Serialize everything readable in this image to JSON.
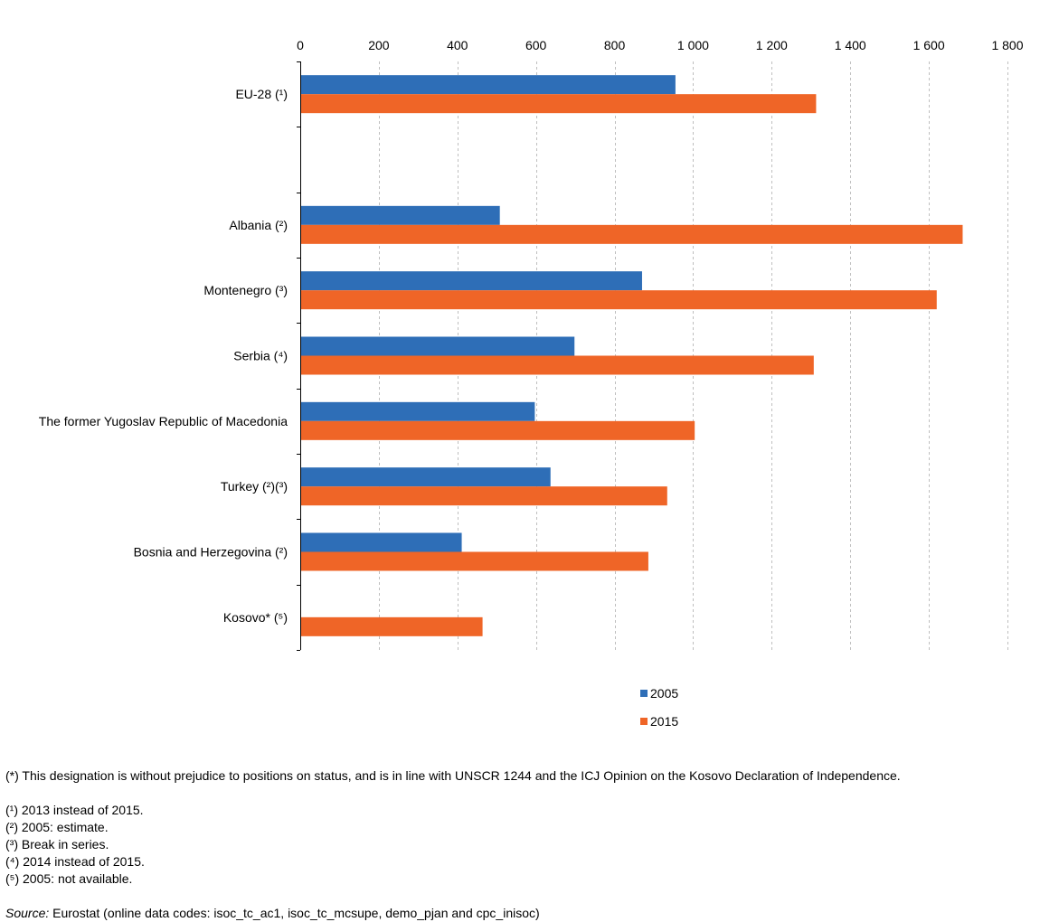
{
  "colors": {
    "series_2005": "#2e6eb7",
    "series_2015": "#ef6527",
    "grid": "#bfbfbf",
    "axis": "#000000"
  },
  "chart_data": {
    "type": "bar",
    "orientation": "horizontal",
    "categories": [
      "EU-28 (¹)",
      "",
      "Albania (²)",
      "Montenegro (³)",
      "Serbia (⁴)",
      "The former Yugoslav Republic of Macedonia",
      "Turkey (²)(³)",
      "Bosnia and Herzegovina (²)",
      "Kosovo* (⁵)"
    ],
    "series": [
      {
        "name": "2005",
        "values": [
          955,
          null,
          508,
          870,
          698,
          597,
          637,
          411,
          null
        ]
      },
      {
        "name": "2015",
        "values": [
          1313,
          null,
          1686,
          1620,
          1307,
          1004,
          934,
          886,
          464
        ]
      }
    ],
    "xlim": [
      0,
      1800
    ],
    "xticks": [
      0,
      200,
      400,
      600,
      800,
      1000,
      1200,
      1400,
      1600,
      1800
    ],
    "xtick_labels": [
      "0",
      "200",
      "400",
      "600",
      "800",
      "1 000",
      "1 200",
      "1 400",
      "1 600",
      "1 800"
    ],
    "grid": "vertical dashed",
    "x_axis_position": "top",
    "legend_position": "bottom"
  },
  "legend": {
    "items": [
      "2005",
      "2015"
    ]
  },
  "notes": {
    "designation": "(*) This designation is without prejudice to positions on status, and is in line with UNSCR 1244 and the ICJ Opinion on the Kosovo Declaration of Independence.",
    "footnotes": [
      "(¹) 2013 instead of 2015.",
      "(²) 2005: estimate.",
      "(³) Break in series.",
      "(⁴) 2014 instead of 2015.",
      "(⁵) 2005: not available."
    ],
    "source_label": "Source:",
    "source_text": " Eurostat (online data codes: isoc_tc_ac1, isoc_tc_mcsupe, demo_pjan and cpc_inisoc)"
  }
}
